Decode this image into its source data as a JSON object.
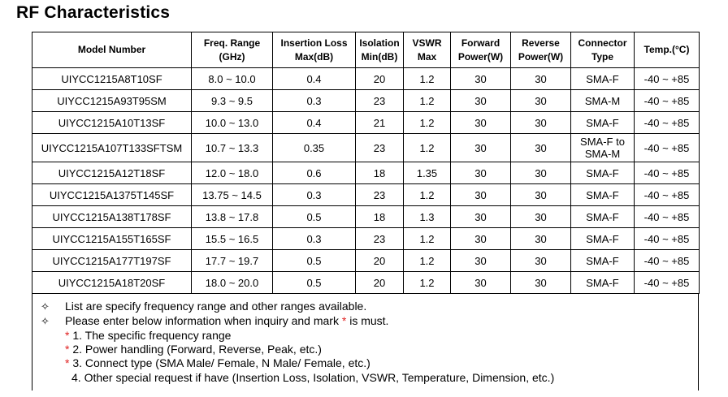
{
  "title": "RF Characteristics",
  "headers": [
    [
      "Model Number"
    ],
    [
      "Freq. Range",
      "(GHz)"
    ],
    [
      "Insertion Loss",
      "Max(dB)"
    ],
    [
      "Isolation",
      "Min(dB)"
    ],
    [
      "VSWR",
      "Max"
    ],
    [
      "Forward",
      "Power(W)"
    ],
    [
      "Reverse",
      "Power(W)"
    ],
    [
      "Connector",
      "Type"
    ],
    [
      "Temp.(°C)"
    ]
  ],
  "rows": [
    [
      "UIYCC1215A8T10SF",
      "8.0 ~ 10.0",
      "0.4",
      "20",
      "1.2",
      "30",
      "30",
      "SMA-F",
      "-40 ~ +85"
    ],
    [
      "UIYCC1215A93T95SM",
      "9.3 ~ 9.5",
      "0.3",
      "23",
      "1.2",
      "30",
      "30",
      "SMA-M",
      "-40 ~ +85"
    ],
    [
      "UIYCC1215A10T13SF",
      "10.0 ~ 13.0",
      "0.4",
      "21",
      "1.2",
      "30",
      "30",
      "SMA-F",
      "-40 ~ +85"
    ],
    [
      "UIYCC1215A107T133SFTSM",
      "10.7 ~ 13.3",
      "0.35",
      "23",
      "1.2",
      "30",
      "30",
      "SMA-F to SMA-M",
      "-40 ~ +85"
    ],
    [
      "UIYCC1215A12T18SF",
      "12.0 ~ 18.0",
      "0.6",
      "18",
      "1.35",
      "30",
      "30",
      "SMA-F",
      "-40 ~ +85"
    ],
    [
      "UIYCC1215A1375T145SF",
      "13.75 ~ 14.5",
      "0.3",
      "23",
      "1.2",
      "30",
      "30",
      "SMA-F",
      "-40 ~ +85"
    ],
    [
      "UIYCC1215A138T178SF",
      "13.8 ~ 17.8",
      "0.5",
      "18",
      "1.3",
      "30",
      "30",
      "SMA-F",
      "-40 ~ +85"
    ],
    [
      "UIYCC1215A155T165SF",
      "15.5 ~ 16.5",
      "0.3",
      "23",
      "1.2",
      "30",
      "30",
      "SMA-F",
      "-40 ~ +85"
    ],
    [
      "UIYCC1215A177T197SF",
      "17.7 ~ 19.7",
      "0.5",
      "20",
      "1.2",
      "30",
      "30",
      "SMA-F",
      "-40 ~ +85"
    ],
    [
      "UIYCC1215A18T20SF",
      "18.0 ~ 20.0",
      "0.5",
      "20",
      "1.2",
      "30",
      "30",
      "SMA-F",
      "-40 ~ +85"
    ]
  ],
  "notes": {
    "bullet_symbol": "✧",
    "line1": "List are specify frequency range and other ranges available.",
    "line2_text": "Please enter below information when inquiry and mark",
    "line2_mark": "*",
    "line2_tail": "is must.",
    "items": [
      {
        "mark": "*",
        "text": "1. The specific frequency range"
      },
      {
        "mark": "*",
        "text": "2. Power handling (Forward, Reverse, Peak, etc.)"
      },
      {
        "mark": "*",
        "text": "3. Connect type (SMA Male/ Female, N Male/ Female, etc.)"
      },
      {
        "mark": "",
        "text": "4. Other special request if have (Insertion Loss, Isolation, VSWR, Temperature, Dimension, etc.)"
      }
    ]
  },
  "colors": {
    "required_mark": "#e02020",
    "border": "#000000"
  }
}
